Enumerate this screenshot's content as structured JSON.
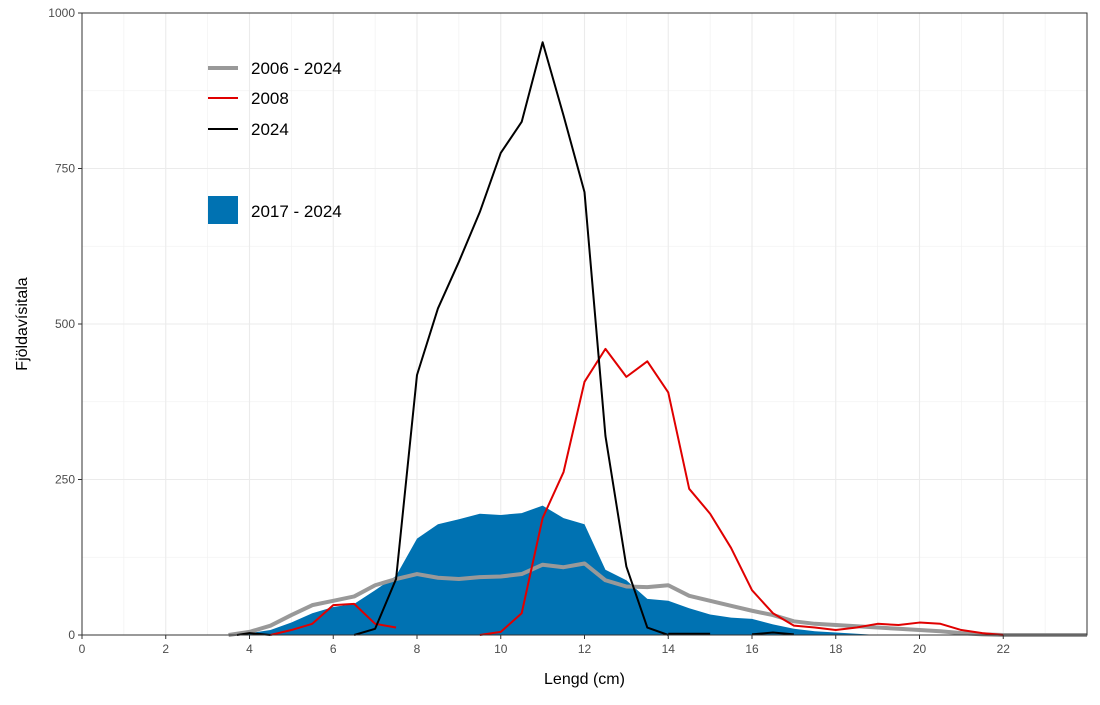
{
  "chart_data": {
    "type": "line",
    "title": "",
    "xlabel": "Lengd (cm)",
    "ylabel": "Fjöldavísitala",
    "xlim": [
      0,
      24
    ],
    "ylim": [
      0,
      1000
    ],
    "x_ticks": [
      0,
      2,
      4,
      6,
      8,
      10,
      12,
      14,
      16,
      18,
      20,
      22
    ],
    "x_tick_labels": [
      "0",
      "2",
      "4",
      "6",
      "8",
      "10",
      "12",
      "14",
      "16",
      "18",
      "20",
      "22"
    ],
    "y_ticks": [
      0,
      250,
      500,
      750,
      1000
    ],
    "y_tick_labels": [
      "0",
      "250",
      "500",
      "750",
      "1000"
    ],
    "grid": true,
    "legend_position": "top-left",
    "area": {
      "name": "2017 - 2024",
      "color": "#0072B2",
      "x": [
        3.5,
        4,
        4.5,
        5,
        5.5,
        6,
        6.5,
        7,
        7.5,
        8,
        8.5,
        9,
        9.5,
        10,
        10.5,
        11,
        11.5,
        12,
        12.5,
        13,
        13.5,
        14,
        14.5,
        15,
        15.5,
        16,
        16.5,
        17,
        17.5,
        18,
        18.5,
        19
      ],
      "y": [
        0,
        3,
        8,
        20,
        35,
        45,
        50,
        72,
        95,
        155,
        178,
        186,
        195,
        193,
        196,
        208,
        188,
        178,
        105,
        88,
        58,
        55,
        43,
        33,
        28,
        26,
        17,
        10,
        6,
        4,
        2,
        0
      ]
    },
    "series": [
      {
        "name": "2006 - 2024",
        "color": "#999999",
        "width": 4,
        "x": [
          3.5,
          4,
          4.5,
          5,
          5.5,
          6,
          6.5,
          7,
          7.5,
          8,
          8.5,
          9,
          9.5,
          10,
          10.5,
          11,
          11.5,
          12,
          12.5,
          13,
          13.5,
          14,
          14.5,
          15,
          15.5,
          16,
          16.5,
          17,
          17.5,
          18,
          18.5,
          19,
          19.5,
          20,
          20.5,
          21,
          21.5,
          22,
          22.5,
          23,
          23.5,
          24
        ],
        "y": [
          0,
          5,
          15,
          32,
          48,
          55,
          62,
          80,
          90,
          98,
          92,
          90,
          93,
          94,
          98,
          113,
          109,
          115,
          88,
          78,
          77,
          80,
          63,
          55,
          47,
          39,
          32,
          22,
          18,
          16,
          14,
          12,
          10,
          8,
          6,
          3,
          1,
          0,
          0,
          0,
          0,
          0
        ]
      },
      {
        "name": "2008",
        "color": "#E00000",
        "width": 2,
        "segments": [
          {
            "x": [
              4.5,
              5,
              5.5,
              6,
              6.5,
              7,
              7.5
            ],
            "y": [
              0,
              8,
              18,
              48,
              50,
              18,
              12
            ]
          },
          {
            "x": [
              9.5,
              10,
              10.5,
              11,
              11.5,
              12,
              12.5,
              13,
              13.5,
              14,
              14.5,
              15,
              15.5,
              16,
              16.5,
              17,
              17.5,
              18,
              18.5,
              19,
              19.5,
              20,
              20.5,
              21,
              21.5,
              22
            ],
            "y": [
              0,
              5,
              35,
              188,
              262,
              407,
              460,
              415,
              440,
              390,
              235,
              195,
              140,
              72,
              35,
              15,
              12,
              8,
              12,
              18,
              16,
              20,
              18,
              8,
              3,
              0
            ]
          }
        ]
      },
      {
        "name": "2024",
        "color": "#000000",
        "width": 2,
        "segments": [
          {
            "x": [
              3.7,
              4,
              4.5
            ],
            "y": [
              0,
              3,
              0
            ]
          },
          {
            "x": [
              6.5,
              7,
              7.5,
              8,
              8.5,
              9,
              9.5,
              10,
              10.5,
              11,
              11.5,
              12,
              12.5,
              13,
              13.5,
              14
            ],
            "y": [
              0,
              10,
              90,
              418,
              525,
              600,
              680,
              775,
              825,
              953,
              835,
              712,
              320,
              110,
              12,
              0
            ]
          },
          {
            "x": [
              14,
              15
            ],
            "y": [
              2,
              2
            ]
          },
          {
            "x": [
              16,
              16.5,
              17
            ],
            "y": [
              1,
              4,
              1
            ]
          }
        ]
      }
    ],
    "legend": {
      "lines": [
        {
          "label": "2006 - 2024",
          "color": "#999999",
          "width": 4
        },
        {
          "label": "2008",
          "color": "#E00000",
          "width": 2
        },
        {
          "label": "2024",
          "color": "#000000",
          "width": 2
        }
      ],
      "fill": {
        "label": "2017 - 2024",
        "color": "#0072B2"
      }
    }
  }
}
